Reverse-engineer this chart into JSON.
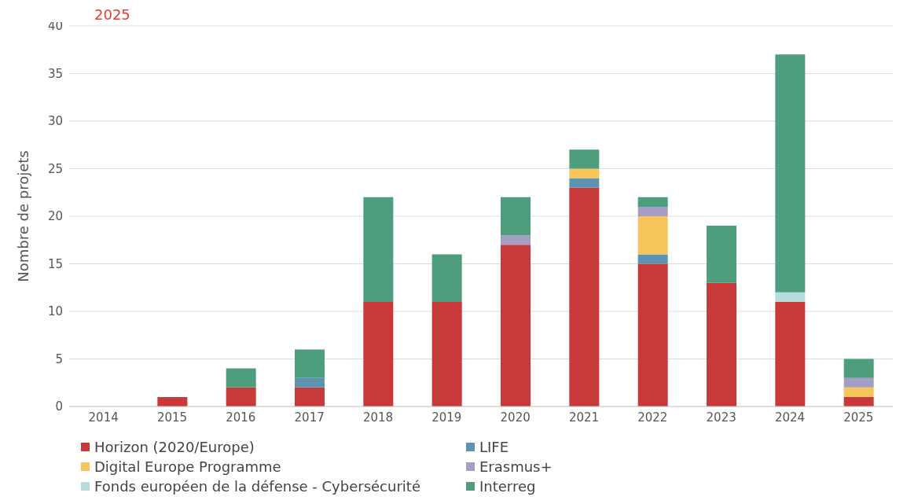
{
  "chart_data": {
    "type": "bar",
    "title": "2025",
    "ylabel": "Nombre de projets",
    "stacked": true,
    "grid": "y",
    "legend": "bottom",
    "categories": [
      "2014",
      "2015",
      "2016",
      "2017",
      "2018",
      "2019",
      "2020",
      "2021",
      "2022",
      "2023",
      "2024",
      "2025"
    ],
    "ylim": [
      0,
      40
    ],
    "yticks": [
      0,
      5,
      10,
      15,
      20,
      25,
      30,
      35,
      40
    ],
    "series": [
      {
        "name": "Horizon (2020/Europe)",
        "color": "#c83a3a",
        "values": [
          0,
          1,
          2,
          2,
          11,
          11,
          17,
          23,
          15,
          13,
          11,
          1
        ]
      },
      {
        "name": "LIFE",
        "color": "#5b93b0",
        "values": [
          0,
          0,
          0,
          1,
          0,
          0,
          0,
          1,
          1,
          0,
          0,
          0
        ]
      },
      {
        "name": "Digital Europe Programme",
        "color": "#f7c55a",
        "values": [
          0,
          0,
          0,
          0,
          0,
          0,
          0,
          1,
          4,
          0,
          0,
          1
        ]
      },
      {
        "name": "Erasmus+",
        "color": "#a59dc3",
        "values": [
          0,
          0,
          0,
          0,
          0,
          0,
          1,
          0,
          1,
          0,
          0,
          1
        ]
      },
      {
        "name": "Fonds européen de la défense  - Cybersécurité",
        "color": "#b5dcdc",
        "values": [
          0,
          0,
          0,
          0,
          0,
          0,
          0,
          0,
          0,
          0,
          1,
          0
        ]
      },
      {
        "name": "Interreg",
        "color": "#4e9e7e",
        "values": [
          0,
          0,
          2,
          3,
          11,
          5,
          4,
          2,
          1,
          6,
          25,
          2
        ]
      }
    ]
  }
}
